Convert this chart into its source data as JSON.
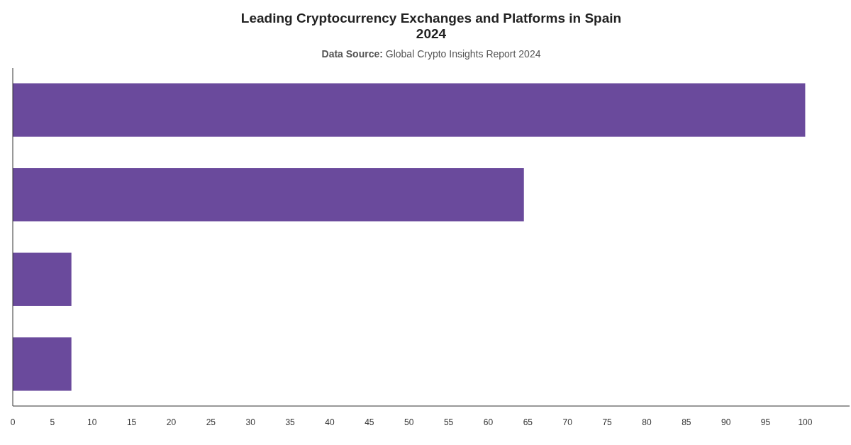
{
  "chart_data": {
    "type": "bar",
    "orientation": "horizontal",
    "title": "Leading Cryptocurrency Exchanges and Platforms in Spain 2024",
    "annotations": [
      "Data Source: Global Crypto Insights Report 2024"
    ],
    "categories": [
      null,
      null,
      null,
      null
    ],
    "values": [
      100,
      64.5,
      7.4,
      7.4
    ],
    "color": "#6a4a9c",
    "xlim": [
      0,
      105.6
    ],
    "xticks": [
      0,
      5,
      10,
      15,
      20,
      25,
      30,
      35,
      40,
      45,
      50,
      55,
      60,
      65,
      70,
      75,
      80,
      85,
      90,
      95,
      100
    ],
    "grid": false
  }
}
